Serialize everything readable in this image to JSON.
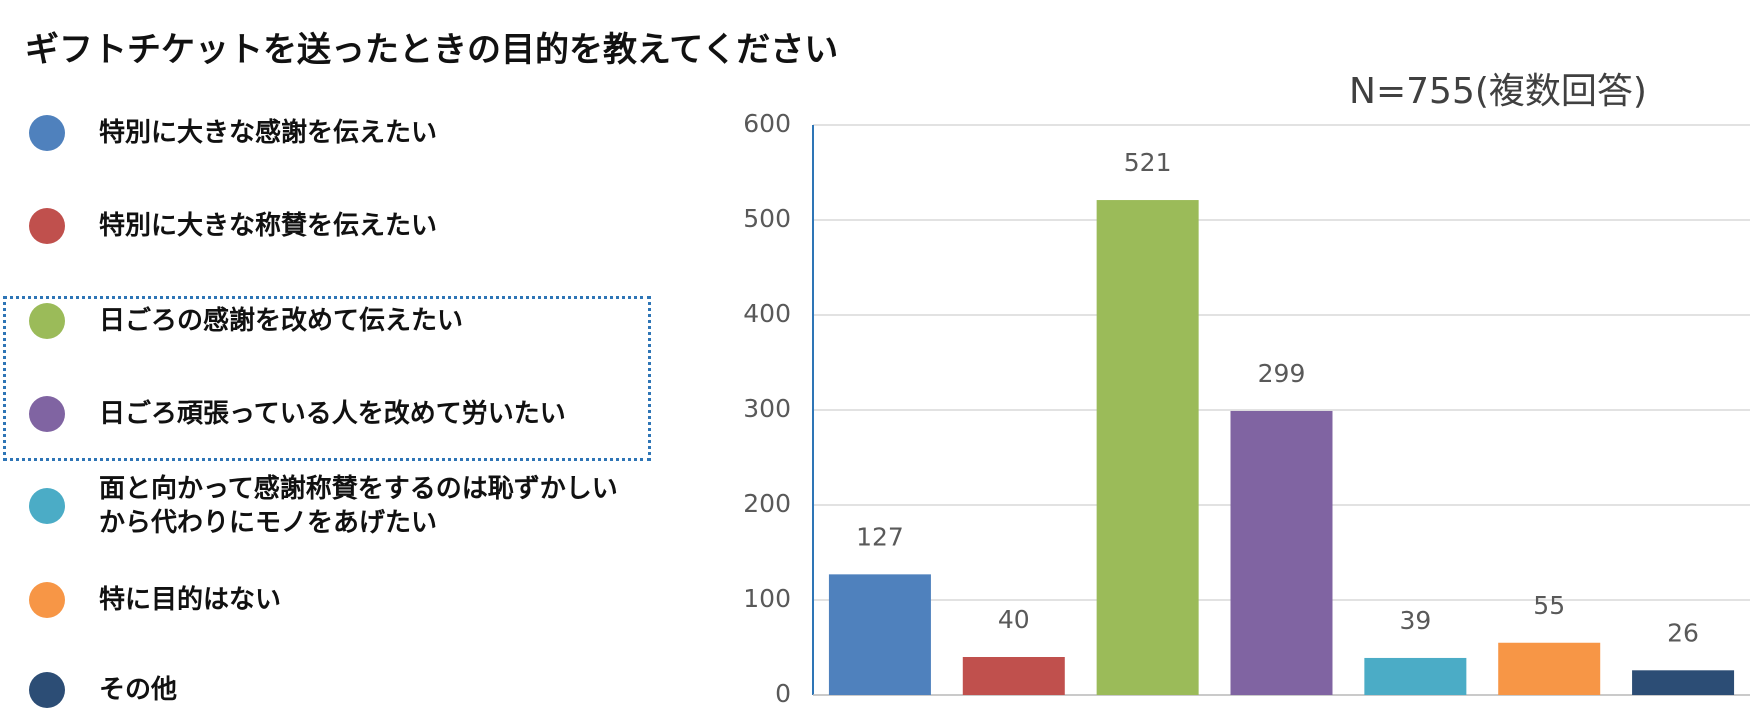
{
  "chart_data": {
    "type": "bar",
    "title": "ギフトチケットを送ったときの目的を教えてください",
    "subtitle": "N=755(複数回答)",
    "categories": [
      "特別に大きな感謝を伝えたい",
      "特別に大きな称賛を伝えたい",
      "日ごろの感謝を改めて伝えたい",
      "日ごろ頑張っている人を改めて労いたい",
      "面と向かって感謝称賛をするのは恥ずかしいから代わりにモノをあげたい",
      "特に目的はない",
      "その他"
    ],
    "values": [
      127,
      40,
      521,
      299,
      39,
      55,
      26
    ],
    "colors": [
      "#4f81bd",
      "#c0504d",
      "#9bbb59",
      "#8064a2",
      "#4bacc6",
      "#f79646",
      "#2c4d75"
    ],
    "ylim": [
      0,
      600
    ],
    "yticks": [
      0,
      100,
      200,
      300,
      400,
      500,
      600
    ],
    "grid": true
  }
}
